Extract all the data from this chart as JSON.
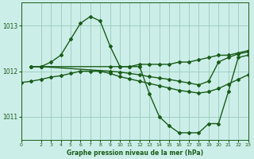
{
  "title": "Graphe pression niveau de la mer (hPa)",
  "background_color": "#cceee8",
  "grid_color": "#99ccbb",
  "line_color": "#1a5c1a",
  "xlim": [
    0,
    23
  ],
  "ylim": [
    1010.5,
    1013.5
  ],
  "yticks": [
    1011,
    1012,
    1013
  ],
  "xtick_labels": [
    "0",
    "2",
    "3",
    "4",
    "5",
    "6",
    "7",
    "8",
    "9",
    "10",
    "11",
    "12",
    "13",
    "14",
    "15",
    "16",
    "17",
    "18",
    "19",
    "20",
    "21",
    "22",
    "23"
  ],
  "xtick_positions": [
    0,
    2,
    3,
    4,
    5,
    6,
    7,
    8,
    9,
    10,
    11,
    12,
    13,
    14,
    15,
    16,
    17,
    18,
    19,
    20,
    21,
    22,
    23
  ],
  "series": [
    {
      "x": [
        1,
        2,
        3,
        4,
        5,
        6,
        7,
        8,
        9,
        10,
        11,
        12,
        13,
        14,
        15,
        16,
        17,
        18,
        19,
        20,
        21,
        22,
        23
      ],
      "y": [
        1012.1,
        1012.1,
        1012.2,
        1012.35,
        1012.7,
        1013.05,
        1013.2,
        1013.1,
        1012.55,
        1012.1,
        1012.1,
        1012.1,
        1011.5,
        1011.0,
        1010.8,
        1010.65,
        1010.65,
        1010.65,
        1010.85,
        1010.85,
        1011.55,
        1012.3,
        1012.35
      ],
      "marker": "D",
      "markersize": 2.0,
      "linewidth": 1.0
    },
    {
      "x": [
        1,
        2,
        9,
        10,
        11,
        12,
        13,
        14,
        15,
        16,
        17,
        18,
        19,
        20,
        21,
        22,
        23
      ],
      "y": [
        1012.1,
        1012.1,
        1012.1,
        1012.1,
        1012.1,
        1012.15,
        1012.15,
        1012.15,
        1012.15,
        1012.2,
        1012.2,
        1012.25,
        1012.3,
        1012.35,
        1012.35,
        1012.4,
        1012.45
      ],
      "marker": "D",
      "markersize": 2.0,
      "linewidth": 1.0
    },
    {
      "x": [
        1,
        2,
        9,
        10,
        11,
        12,
        13,
        14,
        15,
        16,
        17,
        18,
        19,
        20,
        21,
        22,
        23
      ],
      "y": [
        1012.1,
        1012.1,
        1012.0,
        1011.98,
        1011.95,
        1011.92,
        1011.88,
        1011.85,
        1011.82,
        1011.78,
        1011.74,
        1011.7,
        1011.78,
        1012.2,
        1012.3,
        1012.38,
        1012.42
      ],
      "marker": "D",
      "markersize": 2.0,
      "linewidth": 1.0
    },
    {
      "x": [
        0,
        1,
        2,
        3,
        4,
        5,
        6,
        7,
        8,
        9,
        10,
        11,
        12,
        13,
        14,
        15,
        16,
        17,
        18,
        19,
        20,
        21,
        22,
        23
      ],
      "y": [
        1011.75,
        1011.78,
        1011.82,
        1011.87,
        1011.9,
        1011.95,
        1012.0,
        1012.0,
        1012.0,
        1011.95,
        1011.88,
        1011.83,
        1011.78,
        1011.73,
        1011.68,
        1011.63,
        1011.58,
        1011.55,
        1011.52,
        1011.55,
        1011.62,
        1011.72,
        1011.82,
        1011.92
      ],
      "marker": "D",
      "markersize": 2.0,
      "linewidth": 1.0
    }
  ]
}
